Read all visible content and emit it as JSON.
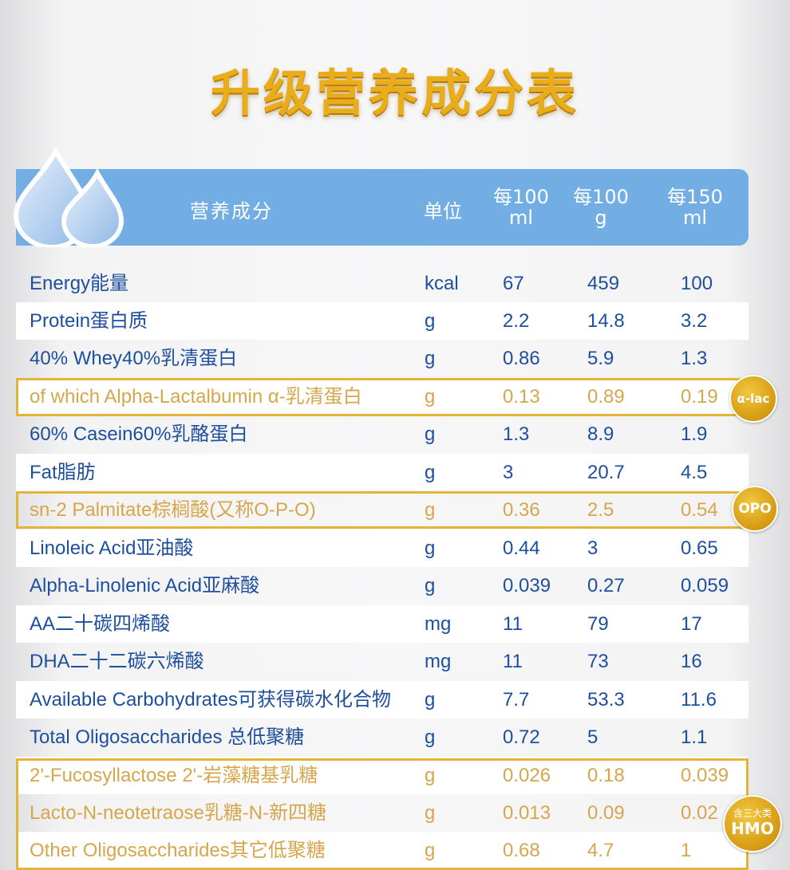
{
  "title": "升级营养成分表",
  "header": {
    "nutrient": "营养成分",
    "unit": "单位",
    "per100ml_line1": "每100",
    "per100ml_line2": "ml",
    "per100g_line1": "每100",
    "per100g_line2": "g",
    "per150ml_line1": "每150",
    "per150ml_line2": "ml"
  },
  "rows": [
    {
      "name": "Energy能量",
      "unit": "kcal",
      "v1": "67",
      "v2": "459",
      "v3": "100"
    },
    {
      "name": "Protein蛋白质",
      "unit": "g",
      "v1": "2.2",
      "v2": "14.8",
      "v3": "3.2"
    },
    {
      "name": "40% Whey40%乳清蛋白",
      "unit": "g",
      "v1": "0.86",
      "v2": "5.9",
      "v3": "1.3"
    },
    {
      "name": "of which Alpha-Lactalbumin α-乳清蛋白",
      "unit": "g",
      "v1": "0.13",
      "v2": "0.89",
      "v3": "0.19"
    },
    {
      "name": "60% Casein60%乳酪蛋白",
      "unit": "g",
      "v1": "1.3",
      "v2": "8.9",
      "v3": "1.9"
    },
    {
      "name": "Fat脂肪",
      "unit": "g",
      "v1": "3",
      "v2": "20.7",
      "v3": "4.5"
    },
    {
      "name": "sn-2 Palmitate棕榈酸(又称O-P-O)",
      "unit": "g",
      "v1": "0.36",
      "v2": "2.5",
      "v3": "0.54"
    },
    {
      "name": "Linoleic Acid亚油酸",
      "unit": "g",
      "v1": "0.44",
      "v2": "3",
      "v3": "0.65"
    },
    {
      "name": "Alpha-Linolenic Acid亚麻酸",
      "unit": "g",
      "v1": "0.039",
      "v2": "0.27",
      "v3": "0.059"
    },
    {
      "name": "AA二十碳四烯酸",
      "unit": "mg",
      "v1": "11",
      "v2": "79",
      "v3": "17"
    },
    {
      "name": "DHA二十二碳六烯酸",
      "unit": "mg",
      "v1": "11",
      "v2": "73",
      "v3": "16"
    },
    {
      "name": "Available Carbohydrates可获得碳水化合物",
      "unit": "g",
      "v1": "7.7",
      "v2": "53.3",
      "v3": "11.6"
    },
    {
      "name": "Total Oligosaccharides 总低聚糖",
      "unit": "g",
      "v1": "0.72",
      "v2": "5",
      "v3": "1.1"
    },
    {
      "name": "2'-Fucosyllactose 2'-岩藻糖基乳糖",
      "unit": "g",
      "v1": "0.026",
      "v2": "0.18",
      "v3": "0.039"
    },
    {
      "name": "Lacto-N-neotetraose乳糖-N-新四糖",
      "unit": "g",
      "v1": "0.013",
      "v2": "0.09",
      "v3": "0.02"
    },
    {
      "name": "Other Oligosaccharides其它低聚糖",
      "unit": "g",
      "v1": "0.68",
      "v2": "4.7",
      "v3": "1"
    }
  ],
  "badges": {
    "alpha_lac": "α-lac",
    "opo": "OPO",
    "hmo_top": "含三大类",
    "hmo_bottom": "HMO"
  },
  "colors": {
    "title_gold": "#e9ac1a",
    "header_blue": "#72ade3",
    "text_blue": "#1e4f9c",
    "highlight_gold": "#d6a64c"
  }
}
